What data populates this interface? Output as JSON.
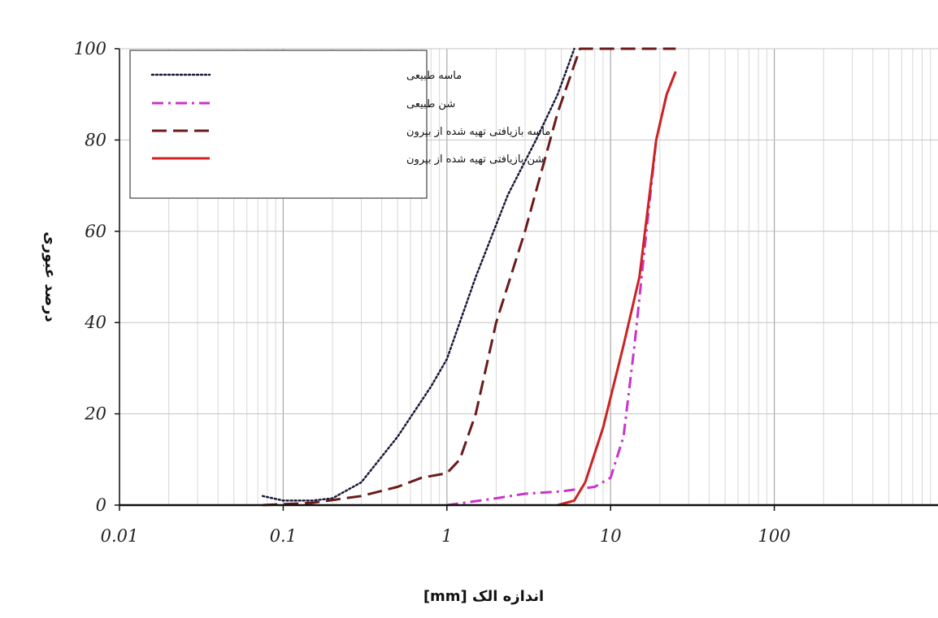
{
  "chart_data": {
    "type": "line",
    "title": "",
    "xlabel": "[mm]   اندازه الک",
    "ylabel": "درصد عبوری",
    "x_scale": "log",
    "xlim": [
      0.01,
      1000
    ],
    "ylim": [
      0,
      100
    ],
    "x_ticks": [
      "0.01",
      "0.1",
      "1",
      "10",
      "100"
    ],
    "x_tick_values": [
      0.01,
      0.1,
      1,
      10,
      100
    ],
    "y_ticks": [
      "0",
      "20",
      "40",
      "60",
      "80",
      "100"
    ],
    "y_tick_values": [
      0,
      20,
      40,
      60,
      80,
      100
    ],
    "grid": true,
    "legend_position": "top-left",
    "series": [
      {
        "name": "ماسه طبیعی",
        "color": "#1a1a3a",
        "style": "dotted",
        "x": [
          0.075,
          0.1,
          0.15,
          0.2,
          0.3,
          0.5,
          0.8,
          1.0,
          1.5,
          2.36,
          3.5,
          4.75,
          6.0
        ],
        "y": [
          2,
          1,
          1,
          1.5,
          5,
          15,
          26,
          32,
          50,
          68,
          80,
          90,
          100
        ]
      },
      {
        "name": "شن طبیعی",
        "color": "#cc33cc",
        "style": "dashdot",
        "x": [
          1.0,
          2.0,
          3.0,
          5.0,
          8.0,
          10.0,
          12.0,
          14.0,
          16.0,
          19.0,
          22.0,
          25.0
        ],
        "y": [
          0,
          1.5,
          2.5,
          3,
          4,
          6,
          15,
          35,
          55,
          80,
          90,
          95
        ]
      },
      {
        "name": "ماسه بازیافتی تهیه شده از بیرون",
        "color": "#6b1a1a",
        "style": "dashed",
        "x": [
          0.075,
          0.15,
          0.3,
          0.5,
          0.7,
          1.0,
          1.2,
          1.5,
          2.0,
          3.0,
          4.75,
          6.5,
          10.0,
          25.0
        ],
        "y": [
          0,
          0.5,
          2,
          4,
          6,
          7,
          10,
          20,
          40,
          60,
          86,
          100,
          100,
          100
        ]
      },
      {
        "name": "شن بازیافتی تهیه شده از بیرون",
        "color": "#cc2222",
        "style": "solid",
        "x": [
          4.75,
          6.0,
          7.0,
          9.0,
          12.0,
          15.0,
          19.0,
          22.0,
          25.0
        ],
        "y": [
          0,
          1,
          5,
          17,
          35,
          50,
          80,
          90,
          95
        ]
      }
    ]
  }
}
